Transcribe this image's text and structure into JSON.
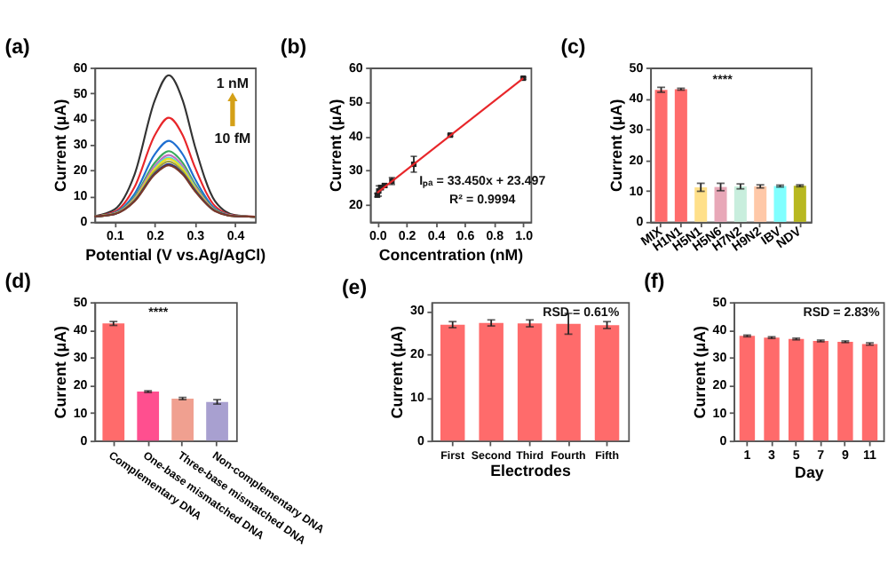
{
  "chart_data": [
    {
      "type": "line",
      "title": "(a)",
      "xlabel": "Potential (V vs.Ag/AgCl)",
      "ylabel": "Current (μA)",
      "x": [
        0.05,
        0.1,
        0.15,
        0.2,
        0.235,
        0.27,
        0.3,
        0.35,
        0.4,
        0.45
      ],
      "xlim": [
        0.05,
        0.45
      ],
      "xticks": [
        0.1,
        0.2,
        0.3,
        0.4
      ],
      "ylim": [
        0,
        60
      ],
      "yticks": [
        0,
        10,
        20,
        30,
        40,
        50,
        60
      ],
      "marker": "none",
      "line_style": "solid",
      "annotations": [
        "1 nM",
        "10 fM"
      ],
      "series": [
        {
          "color": "#333333",
          "values": [
            2.2,
            4.8,
            18.5,
            47.1,
            57,
            47.1,
            29.5,
            8.1,
            2.6,
            2
          ]
        },
        {
          "color": "#e8262a",
          "values": [
            2.1,
            3.9,
            13.6,
            33.6,
            40.5,
            33.6,
            21.3,
            6.2,
            2.4,
            2
          ]
        },
        {
          "color": "#1f6fd1",
          "values": [
            2.1,
            3.5,
            10.9,
            26.2,
            31.5,
            26.2,
            16.8,
            5.2,
            2.3,
            2
          ]
        },
        {
          "color": "#3aaa5e",
          "values": [
            2.1,
            3.3,
            9.7,
            22.9,
            27.5,
            22.9,
            14.8,
            4.8,
            2.3,
            2
          ]
        },
        {
          "color": "#c070c0",
          "values": [
            2.1,
            3.2,
            9.2,
            21.7,
            26,
            21.7,
            14,
            4.6,
            2.3,
            2
          ]
        },
        {
          "color": "#4dd6e0",
          "values": [
            null,
            null,
            null,
            20.9,
            25,
            20.9,
            13.5,
            null,
            null,
            null
          ]
        },
        {
          "color": "#e8e020",
          "values": [
            2.1,
            3.1,
            8.8,
            20.5,
            24.5,
            20.5,
            13.3,
            4.5,
            2.2,
            2
          ]
        },
        {
          "color": "#a0a040",
          "values": [
            2.1,
            3.1,
            8.5,
            19.6,
            23.5,
            19.6,
            12.8,
            4.4,
            2.2,
            2
          ]
        },
        {
          "color": "#1f2f8f",
          "values": [
            2.1,
            3.0,
            8.2,
            18.8,
            22.5,
            18.8,
            12.3,
            4.3,
            2.2,
            2
          ]
        },
        {
          "color": "#7a3a2a",
          "values": [
            2.1,
            3.0,
            8.0,
            18.4,
            22,
            18.4,
            12,
            4.2,
            2.2,
            2
          ]
        }
      ]
    },
    {
      "type": "scatter",
      "title": "(b)",
      "xlabel": "Concentration (nM)",
      "ylabel": "Current (μA)",
      "xlim": [
        -0.05,
        1.05
      ],
      "xticks": [
        {
          "value": 0,
          "label": "0.0"
        },
        {
          "value": 0.2,
          "label": "0.2"
        },
        {
          "value": 0.4,
          "label": "0.4"
        },
        {
          "value": 0.6,
          "label": "0.6"
        },
        {
          "value": 0.8,
          "label": "0.8"
        },
        {
          "value": 1,
          "label": "1.0"
        }
      ],
      "ylim": [
        15,
        60
      ],
      "yticks": [
        20,
        30,
        40,
        50,
        60
      ],
      "annotations": [
        "Iₚₐ = 33.450x + 23.497",
        "R² = 0.9994"
      ],
      "series": [
        {
          "type": "scatter",
          "marker": "square",
          "color": "#222222",
          "x": [
            0,
            0.01,
            0.025,
            0.05,
            0.1,
            0.25,
            0.5,
            1.0
          ],
          "values": [
            22.8,
            24,
            25,
            25.6,
            26.9,
            31.8,
            40.3,
            56.9
          ],
          "errors": [
            0.5,
            1.5,
            0.6,
            0.5,
            1,
            2.3,
            0.3,
            0.3
          ]
        },
        {
          "type": "line",
          "line_style": "solid",
          "color": "#e8262a",
          "x": [
            0,
            1
          ],
          "values": [
            23.5,
            56.9
          ]
        }
      ]
    },
    {
      "type": "bar",
      "title": "(c)",
      "ylabel": "Current (μA)",
      "categories": [
        "MIX",
        "H1N1",
        "H5N1",
        "H5N6",
        "H7N2",
        "H9N2",
        "IBV",
        "NDV"
      ],
      "values": [
        42.8,
        43,
        11.2,
        11.3,
        11.5,
        11.5,
        11.6,
        11.7
      ],
      "errors": [
        0.8,
        0.3,
        1.3,
        1.2,
        0.8,
        0.5,
        0.3,
        0.3
      ],
      "colors": [
        "#ff6b6b",
        "#ff6b6b",
        "#ffe08a",
        "#e8a8b8",
        "#c8eedd",
        "#ffc8a8",
        "#80ffff",
        "#b8b820"
      ],
      "ylim": [
        0,
        50
      ],
      "yticks": [
        0,
        10,
        20,
        30,
        40,
        50
      ],
      "annotations": [
        "****"
      ]
    },
    {
      "type": "bar",
      "title": "(d)",
      "ylabel": "Current (μA)",
      "categories": [
        "Complementary DNA",
        "One-base mismatched DNA",
        "Three-base mismatched DNA",
        "Non-complementary DNA"
      ],
      "values": [
        42.3,
        17.7,
        15.2,
        14
      ],
      "errors": [
        0.7,
        0.3,
        0.4,
        0.8
      ],
      "colors": [
        "#ff6b6b",
        "#ff4f8f",
        "#f0a090",
        "#a8a0d0"
      ],
      "ylim": [
        0,
        50
      ],
      "yticks": [
        0,
        10,
        20,
        30,
        40,
        50
      ],
      "annotations": [
        "****"
      ]
    },
    {
      "type": "bar",
      "title": "(e)",
      "xlabel": "Electrodes",
      "ylabel": "Current (μA)",
      "categories": [
        "First",
        "Second",
        "Third",
        "Fourth",
        "Fifth"
      ],
      "values": [
        26.8,
        27.2,
        27.1,
        27,
        26.7
      ],
      "errors": [
        0.7,
        0.7,
        0.8,
        2.4,
        0.8
      ],
      "colors": [
        "#ff6b6b",
        "#ff6b6b",
        "#ff6b6b",
        "#ff6b6b",
        "#ff6b6b"
      ],
      "ylim": [
        0,
        32
      ],
      "yticks": [
        0,
        10,
        20,
        30
      ],
      "annotations": [
        "RSD = 0.61%"
      ]
    },
    {
      "type": "bar",
      "title": "(f)",
      "xlabel": "Day",
      "ylabel": "Current (μA)",
      "categories": [
        "1",
        "3",
        "5",
        "7",
        "9",
        "11"
      ],
      "values": [
        37.8,
        37.2,
        36.7,
        36,
        35.7,
        34.9
      ],
      "errors": [
        0.3,
        0.3,
        0.3,
        0.3,
        0.3,
        0.4
      ],
      "colors": [
        "#ff6b6b",
        "#ff6b6b",
        "#ff6b6b",
        "#ff6b6b",
        "#ff6b6b",
        "#ff6b6b"
      ],
      "ylim": [
        0,
        50
      ],
      "yticks": [
        0,
        10,
        20,
        30,
        40,
        50
      ],
      "annotations": [
        "RSD = 2.83%"
      ]
    }
  ]
}
